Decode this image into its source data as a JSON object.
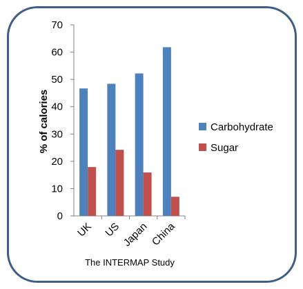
{
  "chart_data": {
    "type": "bar",
    "categories": [
      "UK",
      "US",
      "Japan",
      "China"
    ],
    "series": [
      {
        "name": "Carbohydrate",
        "values": [
          46.7,
          48.4,
          52.2,
          61.8
        ],
        "color": "#4f81bd"
      },
      {
        "name": "Sugar",
        "values": [
          17.9,
          24.2,
          15.9,
          7.0
        ],
        "color": "#c0504d"
      }
    ],
    "title": "",
    "xlabel": "The INTERMAP Study",
    "ylabel": "% of calories",
    "ylim": [
      0,
      70
    ],
    "yticks": [
      "0",
      "10",
      "20",
      "30",
      "40",
      "50",
      "60",
      "70"
    ],
    "grid": false,
    "legend_position": "right"
  },
  "colors": {
    "frame_border": "#3f5e86",
    "axis": "#808080"
  }
}
